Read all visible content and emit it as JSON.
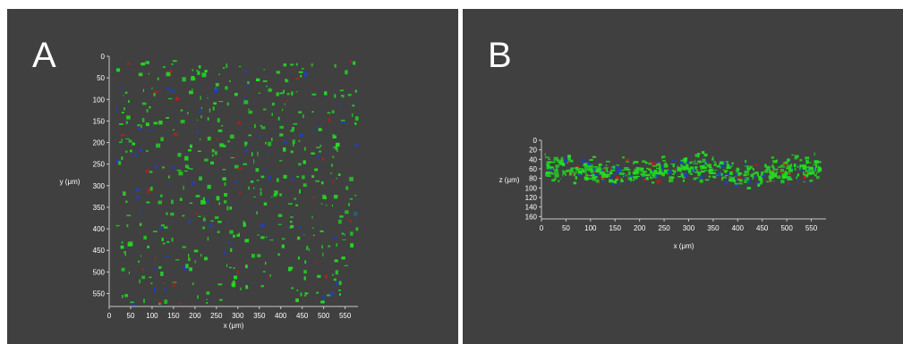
{
  "panels": [
    {
      "id": "A",
      "letter": "A",
      "xlabel": "x (μm)",
      "ylabel": "y (μm)",
      "x_ticks": [
        0,
        50,
        100,
        150,
        200,
        250,
        300,
        350,
        400,
        450,
        500,
        550
      ],
      "y_ticks": [
        0,
        50,
        100,
        150,
        200,
        250,
        300,
        350,
        400,
        450,
        500,
        550
      ],
      "x_range": [
        0,
        580
      ],
      "y_range": [
        0,
        580
      ],
      "view": "xy",
      "colors": [
        "#22dd22",
        "#1f3fbf",
        "#b02020"
      ]
    },
    {
      "id": "B",
      "letter": "B",
      "xlabel": "x (μm)",
      "ylabel": "z (μm)",
      "x_ticks": [
        0,
        50,
        100,
        150,
        200,
        250,
        300,
        350,
        400,
        450,
        500,
        550
      ],
      "y_ticks": [
        0,
        20,
        40,
        60,
        80,
        100,
        120,
        140,
        160
      ],
      "x_range": [
        0,
        580
      ],
      "y_range": [
        0,
        165
      ],
      "view": "xz",
      "colors": [
        "#22dd22",
        "#1f3fbf",
        "#b02020"
      ]
    }
  ]
}
